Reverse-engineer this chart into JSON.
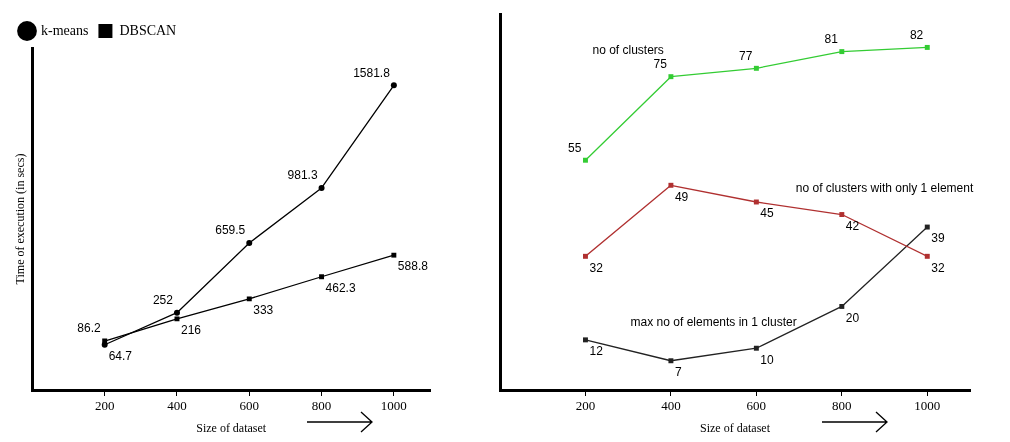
{
  "chart_data": [
    {
      "type": "line",
      "ylabel": "Time of execution (in secs)",
      "xlabel": "Size of dataset",
      "x": [
        200,
        400,
        600,
        800,
        1000
      ],
      "xlim": [
        0,
        1100
      ],
      "xticks": [
        200,
        400,
        600,
        800,
        1000
      ],
      "tick_labels": "x",
      "grid": false,
      "legend": "top left",
      "data_labels": true,
      "series": [
        {
          "name": "k-means",
          "color": "#000000",
          "marker": "circle",
          "values": [
            64.7,
            252,
            659.5,
            981.3,
            1581.8
          ]
        },
        {
          "name": "DBSCAN",
          "color": "#000000",
          "marker": "square",
          "values": [
            86.2,
            216,
            333,
            462.3,
            588.8
          ]
        }
      ]
    },
    {
      "type": "line",
      "xlabel": "Size of dataset",
      "x": [
        200,
        400,
        600,
        800,
        1000
      ],
      "xlim": [
        0,
        1100
      ],
      "xticks": [
        200,
        400,
        600,
        800,
        1000
      ],
      "tick_labels": "x",
      "grid": false,
      "legend": false,
      "data_labels": true,
      "marker": "square",
      "series": [
        {
          "name": "no of clusters",
          "color": "#33cc33",
          "values": [
            55,
            75,
            77,
            81,
            82
          ]
        },
        {
          "name": "no of clusters with only 1 element",
          "color": "#b03030",
          "values": [
            32,
            49,
            45,
            42,
            32
          ]
        },
        {
          "name": "max no of elements in 1 cluster",
          "color": "#222222",
          "values": [
            12,
            7,
            10,
            20,
            39
          ]
        }
      ]
    }
  ]
}
